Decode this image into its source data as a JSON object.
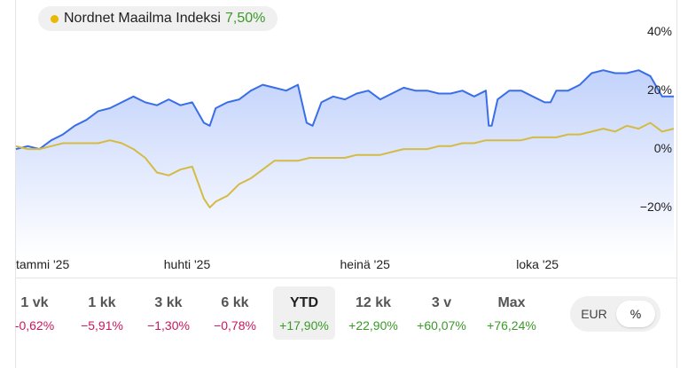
{
  "legend": {
    "name": "Nordnet Maailma Indeksi",
    "value": "7,50%",
    "dot_color": "#e9b800",
    "value_color": "#3a9a28"
  },
  "colors": {
    "main_line": "#3a6ee8",
    "benchmark_line": "#d4bb45",
    "fill_top": "#c2d2fb"
  },
  "chart_data": {
    "type": "line",
    "title": "",
    "y_ticks": [
      "40%",
      "20%",
      "0%",
      "−20%"
    ],
    "y_tick_values": [
      40,
      20,
      0,
      -20
    ],
    "x_ticks": [
      "tammi '25",
      "huhti '25",
      "heinä '25",
      "loka '25"
    ],
    "x_tick_values": [
      0,
      3,
      6,
      9
    ],
    "ylim": [
      -37,
      48
    ],
    "xlim": [
      0,
      11.2
    ],
    "grid": false,
    "series": [
      {
        "style": "main",
        "x": [
          0,
          0.2,
          0.4,
          0.6,
          0.8,
          1.0,
          1.2,
          1.4,
          1.6,
          1.8,
          2.0,
          2.2,
          2.4,
          2.6,
          2.8,
          3.0,
          3.2,
          3.3,
          3.4,
          3.6,
          3.8,
          4.0,
          4.2,
          4.4,
          4.6,
          4.8,
          4.95,
          5.05,
          5.2,
          5.4,
          5.6,
          5.8,
          6.0,
          6.2,
          6.4,
          6.6,
          6.8,
          7.0,
          7.2,
          7.4,
          7.6,
          7.8,
          8.0,
          8.05,
          8.1,
          8.2,
          8.4,
          8.6,
          8.8,
          9.0,
          9.1,
          9.2,
          9.4,
          9.6,
          9.8,
          10.0,
          10.2,
          10.4,
          10.6,
          10.8,
          11.0,
          11.2
        ],
        "y": [
          0,
          1,
          0,
          3,
          5,
          8,
          10,
          13,
          14,
          16,
          18,
          16,
          15,
          17,
          15,
          16,
          9,
          8,
          14,
          16,
          17,
          20,
          22,
          21,
          20,
          22,
          9,
          8,
          16,
          18,
          17,
          19,
          20,
          17,
          19,
          21,
          20,
          20,
          19,
          19,
          20,
          18,
          20,
          8,
          8,
          17,
          20,
          20,
          18,
          16,
          16,
          20,
          20,
          22,
          26,
          27,
          26,
          26,
          27,
          25,
          18,
          18
        ]
      },
      {
        "style": "benchmark",
        "x": [
          0,
          0.2,
          0.4,
          0.6,
          0.8,
          1.0,
          1.2,
          1.4,
          1.6,
          1.8,
          2.0,
          2.2,
          2.4,
          2.6,
          2.8,
          3.0,
          3.2,
          3.3,
          3.4,
          3.6,
          3.8,
          4.0,
          4.2,
          4.4,
          4.6,
          4.8,
          5.0,
          5.2,
          5.4,
          5.6,
          5.8,
          6.0,
          6.2,
          6.4,
          6.6,
          6.8,
          7.0,
          7.2,
          7.4,
          7.6,
          7.8,
          8.0,
          8.2,
          8.4,
          8.6,
          8.8,
          9.0,
          9.2,
          9.4,
          9.6,
          9.8,
          10.0,
          10.2,
          10.4,
          10.6,
          10.8,
          11.0,
          11.2
        ],
        "y": [
          1,
          0,
          0,
          1,
          2,
          2,
          2,
          2,
          3,
          2,
          0,
          -3,
          -8,
          -9,
          -7,
          -6,
          -17,
          -20,
          -18,
          -16,
          -12,
          -10,
          -7,
          -4,
          -4,
          -4,
          -3,
          -3,
          -3,
          -3,
          -2,
          -2,
          -2,
          -1,
          0,
          0,
          0,
          1,
          1,
          2,
          2,
          3,
          3,
          3,
          3,
          4,
          4,
          4,
          5,
          5,
          6,
          7,
          6,
          8,
          7,
          9,
          6,
          7
        ]
      }
    ]
  },
  "periods": [
    {
      "label": "1 vk",
      "change": "-0,62%",
      "sign": "neg"
    },
    {
      "label": "1 kk",
      "change": "−5,91%",
      "sign": "neg"
    },
    {
      "label": "3 kk",
      "change": "−1,30%",
      "sign": "neg"
    },
    {
      "label": "6 kk",
      "change": "−0,78%",
      "sign": "neg"
    },
    {
      "label": "YTD",
      "change": "+17,90%",
      "sign": "pos",
      "active": true
    },
    {
      "label": "12 kk",
      "change": "+22,90%",
      "sign": "pos"
    },
    {
      "label": "3 v",
      "change": "+60,07%",
      "sign": "pos"
    },
    {
      "label": "Max",
      "change": "+76,24%",
      "sign": "pos"
    }
  ],
  "unit_toggle": {
    "options": [
      "EUR",
      "%"
    ],
    "selected": "%"
  }
}
